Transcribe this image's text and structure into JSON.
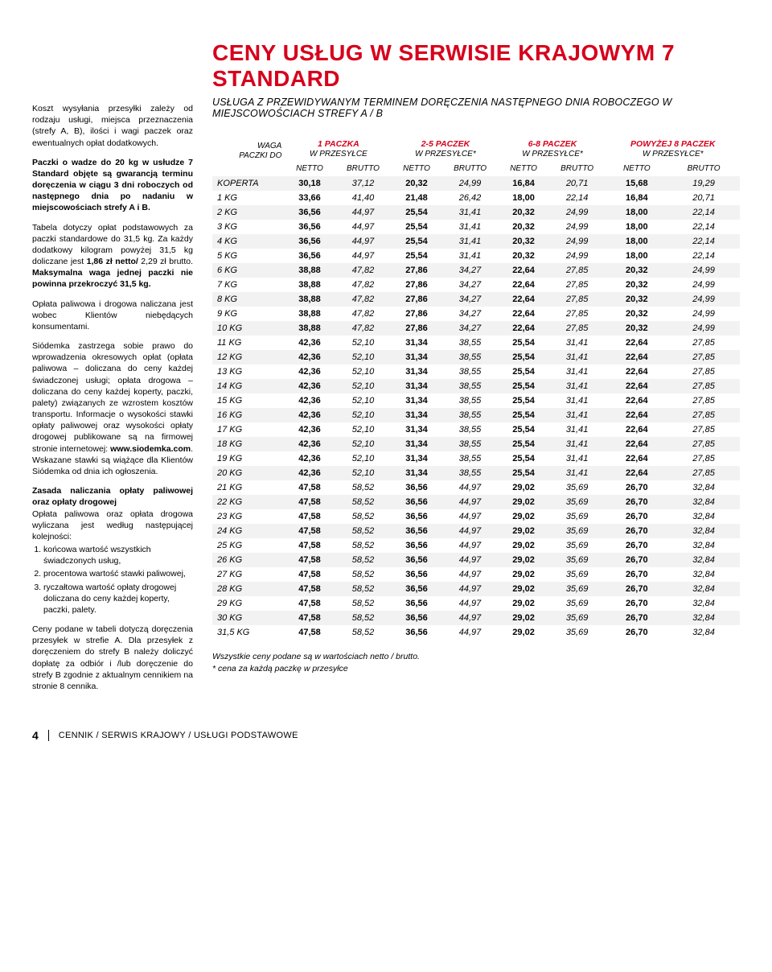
{
  "title": "CENY USŁUG W SERWISIE KRAJOWYM 7 STANDARD",
  "subtitle_pre": "USŁUGA Z PRZEWIDYWANYM TERMINEM DORĘCZENIA NASTĘPNEGO DNIA ROBOCZEGO W MIEJSCOWOŚCIACH STREFY ",
  "subtitle_zones": "A / B",
  "left": {
    "p1": "Koszt wysyłania przesyłki zależy od rodzaju usługi, miejsca przeznaczenia (strefy A, B), ilości i wagi paczek oraz ewentualnych opłat dodatkowych.",
    "p2": "Paczki o wadze do 20 kg w usłudze 7 Standard objęte są gwarancją terminu doręczenia w ciągu 3 dni roboczych od następnego dnia po nadaniu w miejscowościach strefy A i B.",
    "p3a": "Tabela dotyczy opłat podstawowych za paczki standardowe do 31,5 kg. Za każdy dodatkowy kilogram powyżej 31,5 kg doliczane jest ",
    "p3b": "1,86 zł netto/",
    "p3c": " 2,29 zł brutto. ",
    "p3d": "Maksymalna waga jednej paczki nie powinna przekroczyć 31,5 kg.",
    "p4": "Opłata paliwowa i drogowa naliczana jest wobec Klientów niebędących konsumentami.",
    "p5a": "Siódemka zastrzega sobie prawo do wprowadzenia okresowych opłat (opłata paliwowa – doliczana do ceny każdej świadczonej usługi; opłata drogowa – doliczana do ceny każdej koperty, paczki, palety) związanych ze wzrostem kosztów transportu. Informacje o wysokości stawki opłaty paliwowej oraz wysokości opłaty drogowej publikowane są na firmowej stronie internetowej: ",
    "p5b": "www.siodemka.com",
    "p5c": ". Wskazane stawki są wiążące dla Klientów Siódemka od dnia ich ogłoszenia.",
    "p6h": "Zasada naliczania opłaty paliwowej oraz opłaty drogowej",
    "p6": "Opłata paliwowa oraz opłata drogowa wyliczana jest według następującej kolejności:",
    "li1": "końcowa wartość wszystkich świadczonych usług,",
    "li2": "procentowa wartość stawki paliwowej,",
    "li3": "ryczałtowa wartość opłaty drogowej doliczana do ceny każdej koperty, paczki, palety.",
    "p7": "Ceny podane w tabeli dotyczą doręczenia przesyłek w strefie A. Dla przesyłek z doręczeniem do strefy B należy doliczyć dopłatę za odbiór i /lub doręczenie do strefy B zgodnie z aktualnym cennikiem na stronie 8 cennika."
  },
  "table": {
    "wg_label_waga": "WAGA",
    "wg_label_paczki": "PACZKI DO",
    "groups": [
      {
        "top": "1 PACZKA",
        "sub": "W PRZESYŁCE"
      },
      {
        "top": "2-5 PACZEK",
        "sub": "W PRZESYŁCE*"
      },
      {
        "top": "6-8 PACZEK",
        "sub": "W PRZESYŁCE*"
      },
      {
        "top": "POWYŻEJ 8 PACZEK",
        "sub": "W PRZESYŁCE*"
      }
    ],
    "netto": "NETTO",
    "brutto": "BRUTTO",
    "rows": [
      {
        "w": "KOPERTA",
        "v": [
          "30,18",
          "37,12",
          "20,32",
          "24,99",
          "16,84",
          "20,71",
          "15,68",
          "19,29"
        ]
      },
      {
        "w": "1 KG",
        "v": [
          "33,66",
          "41,40",
          "21,48",
          "26,42",
          "18,00",
          "22,14",
          "16,84",
          "20,71"
        ]
      },
      {
        "w": "2 KG",
        "v": [
          "36,56",
          "44,97",
          "25,54",
          "31,41",
          "20,32",
          "24,99",
          "18,00",
          "22,14"
        ]
      },
      {
        "w": "3 KG",
        "v": [
          "36,56",
          "44,97",
          "25,54",
          "31,41",
          "20,32",
          "24,99",
          "18,00",
          "22,14"
        ]
      },
      {
        "w": "4 KG",
        "v": [
          "36,56",
          "44,97",
          "25,54",
          "31,41",
          "20,32",
          "24,99",
          "18,00",
          "22,14"
        ]
      },
      {
        "w": "5 KG",
        "v": [
          "36,56",
          "44,97",
          "25,54",
          "31,41",
          "20,32",
          "24,99",
          "18,00",
          "22,14"
        ]
      },
      {
        "w": "6 KG",
        "v": [
          "38,88",
          "47,82",
          "27,86",
          "34,27",
          "22,64",
          "27,85",
          "20,32",
          "24,99"
        ]
      },
      {
        "w": "7 KG",
        "v": [
          "38,88",
          "47,82",
          "27,86",
          "34,27",
          "22,64",
          "27,85",
          "20,32",
          "24,99"
        ]
      },
      {
        "w": "8 KG",
        "v": [
          "38,88",
          "47,82",
          "27,86",
          "34,27",
          "22,64",
          "27,85",
          "20,32",
          "24,99"
        ]
      },
      {
        "w": "9 KG",
        "v": [
          "38,88",
          "47,82",
          "27,86",
          "34,27",
          "22,64",
          "27,85",
          "20,32",
          "24,99"
        ]
      },
      {
        "w": "10 KG",
        "v": [
          "38,88",
          "47,82",
          "27,86",
          "34,27",
          "22,64",
          "27,85",
          "20,32",
          "24,99"
        ]
      },
      {
        "w": "11 KG",
        "v": [
          "42,36",
          "52,10",
          "31,34",
          "38,55",
          "25,54",
          "31,41",
          "22,64",
          "27,85"
        ]
      },
      {
        "w": "12 KG",
        "v": [
          "42,36",
          "52,10",
          "31,34",
          "38,55",
          "25,54",
          "31,41",
          "22,64",
          "27,85"
        ]
      },
      {
        "w": "13 KG",
        "v": [
          "42,36",
          "52,10",
          "31,34",
          "38,55",
          "25,54",
          "31,41",
          "22,64",
          "27,85"
        ]
      },
      {
        "w": "14 KG",
        "v": [
          "42,36",
          "52,10",
          "31,34",
          "38,55",
          "25,54",
          "31,41",
          "22,64",
          "27,85"
        ]
      },
      {
        "w": "15 KG",
        "v": [
          "42,36",
          "52,10",
          "31,34",
          "38,55",
          "25,54",
          "31,41",
          "22,64",
          "27,85"
        ]
      },
      {
        "w": "16 KG",
        "v": [
          "42,36",
          "52,10",
          "31,34",
          "38,55",
          "25,54",
          "31,41",
          "22,64",
          "27,85"
        ]
      },
      {
        "w": "17 KG",
        "v": [
          "42,36",
          "52,10",
          "31,34",
          "38,55",
          "25,54",
          "31,41",
          "22,64",
          "27,85"
        ]
      },
      {
        "w": "18 KG",
        "v": [
          "42,36",
          "52,10",
          "31,34",
          "38,55",
          "25,54",
          "31,41",
          "22,64",
          "27,85"
        ]
      },
      {
        "w": "19 KG",
        "v": [
          "42,36",
          "52,10",
          "31,34",
          "38,55",
          "25,54",
          "31,41",
          "22,64",
          "27,85"
        ]
      },
      {
        "w": "20 KG",
        "v": [
          "42,36",
          "52,10",
          "31,34",
          "38,55",
          "25,54",
          "31,41",
          "22,64",
          "27,85"
        ]
      },
      {
        "w": "21 KG",
        "v": [
          "47,58",
          "58,52",
          "36,56",
          "44,97",
          "29,02",
          "35,69",
          "26,70",
          "32,84"
        ]
      },
      {
        "w": "22 KG",
        "v": [
          "47,58",
          "58,52",
          "36,56",
          "44,97",
          "29,02",
          "35,69",
          "26,70",
          "32,84"
        ]
      },
      {
        "w": "23 KG",
        "v": [
          "47,58",
          "58,52",
          "36,56",
          "44,97",
          "29,02",
          "35,69",
          "26,70",
          "32,84"
        ]
      },
      {
        "w": "24 KG",
        "v": [
          "47,58",
          "58,52",
          "36,56",
          "44,97",
          "29,02",
          "35,69",
          "26,70",
          "32,84"
        ]
      },
      {
        "w": "25 KG",
        "v": [
          "47,58",
          "58,52",
          "36,56",
          "44,97",
          "29,02",
          "35,69",
          "26,70",
          "32,84"
        ]
      },
      {
        "w": "26 KG",
        "v": [
          "47,58",
          "58,52",
          "36,56",
          "44,97",
          "29,02",
          "35,69",
          "26,70",
          "32,84"
        ]
      },
      {
        "w": "27 KG",
        "v": [
          "47,58",
          "58,52",
          "36,56",
          "44,97",
          "29,02",
          "35,69",
          "26,70",
          "32,84"
        ]
      },
      {
        "w": "28 KG",
        "v": [
          "47,58",
          "58,52",
          "36,56",
          "44,97",
          "29,02",
          "35,69",
          "26,70",
          "32,84"
        ]
      },
      {
        "w": "29 KG",
        "v": [
          "47,58",
          "58,52",
          "36,56",
          "44,97",
          "29,02",
          "35,69",
          "26,70",
          "32,84"
        ]
      },
      {
        "w": "30 KG",
        "v": [
          "47,58",
          "58,52",
          "36,56",
          "44,97",
          "29,02",
          "35,69",
          "26,70",
          "32,84"
        ]
      },
      {
        "w": "31,5 KG",
        "v": [
          "47,58",
          "58,52",
          "36,56",
          "44,97",
          "29,02",
          "35,69",
          "26,70",
          "32,84"
        ]
      }
    ],
    "note1": "Wszystkie ceny podane są w wartościach netto / brutto.",
    "note2": "* cena za każdą paczkę w przesyłce"
  },
  "footer": {
    "page": "4",
    "breadcrumb": "CENNIK / SERWIS KRAJOWY / USŁUGI PODSTAWOWE"
  },
  "colors": {
    "accent": "#d6001c",
    "row_alt": "#f2f2f2",
    "text": "#000000",
    "bg": "#ffffff"
  }
}
